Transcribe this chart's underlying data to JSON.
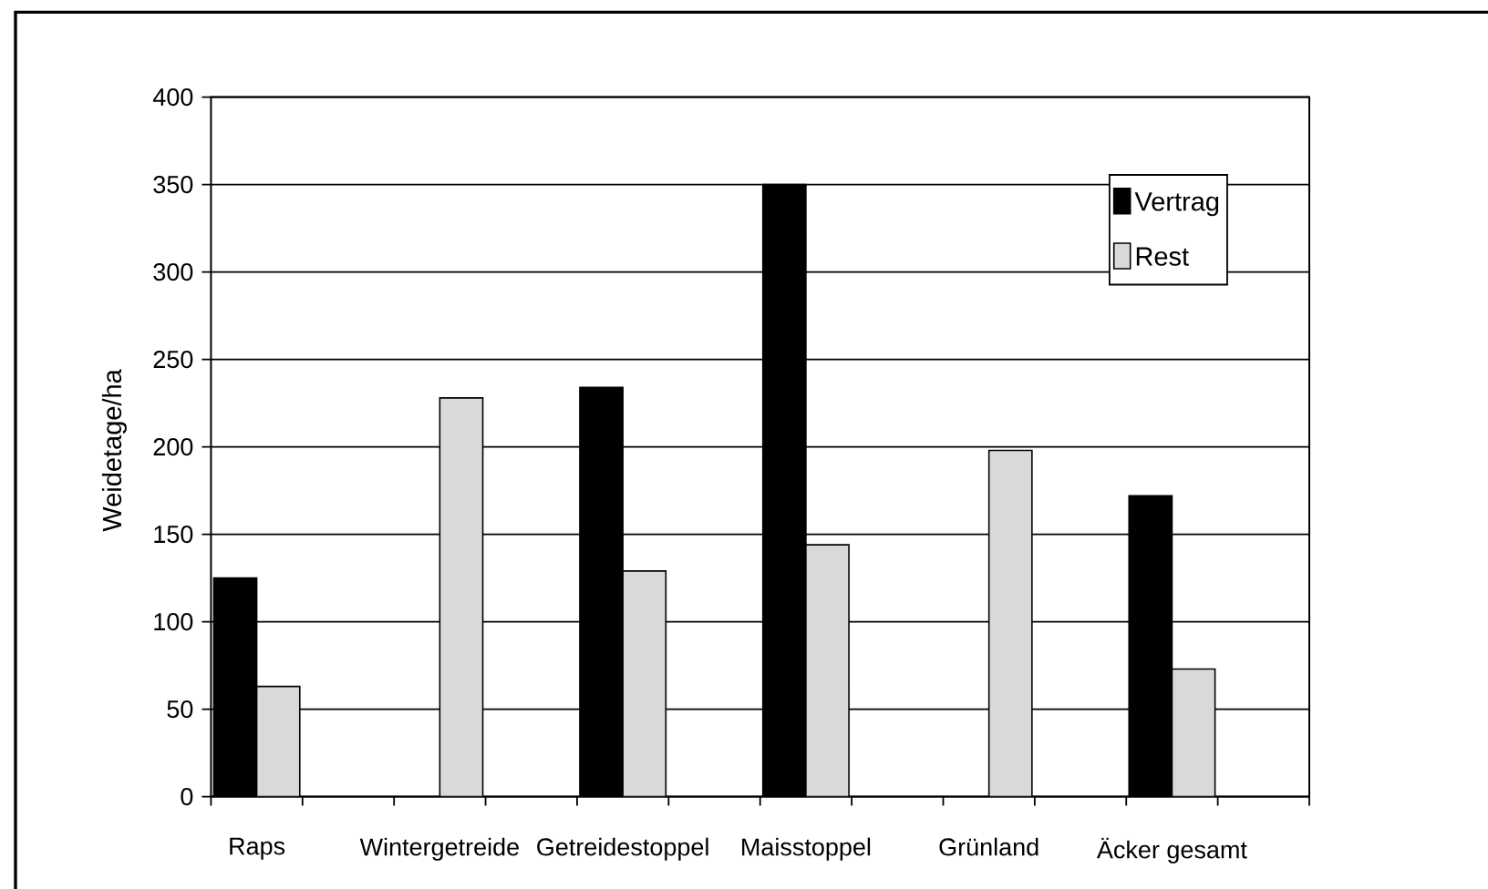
{
  "chart_data": {
    "type": "bar",
    "ylabel": "Weidetage/ha",
    "categories": [
      "Raps",
      null,
      "Wintergetreide",
      null,
      "Getreidestoppel",
      null,
      "Maisstoppel",
      null,
      "Grünland",
      null,
      "Äcker gesamt",
      null
    ],
    "series": [
      {
        "name": "Vertrag",
        "color": "#000000",
        "values": [
          125,
          null,
          null,
          null,
          234,
          null,
          350,
          null,
          null,
          null,
          172,
          null
        ]
      },
      {
        "name": "Rest",
        "color": "#d9d9d9",
        "values": [
          63,
          null,
          228,
          null,
          129,
          null,
          144,
          null,
          198,
          null,
          73,
          null
        ]
      }
    ],
    "ylim": [
      0,
      400
    ],
    "yticks": [
      0,
      50,
      100,
      150,
      200,
      250,
      300,
      350,
      400
    ],
    "grid": "y",
    "legend": "top right"
  }
}
